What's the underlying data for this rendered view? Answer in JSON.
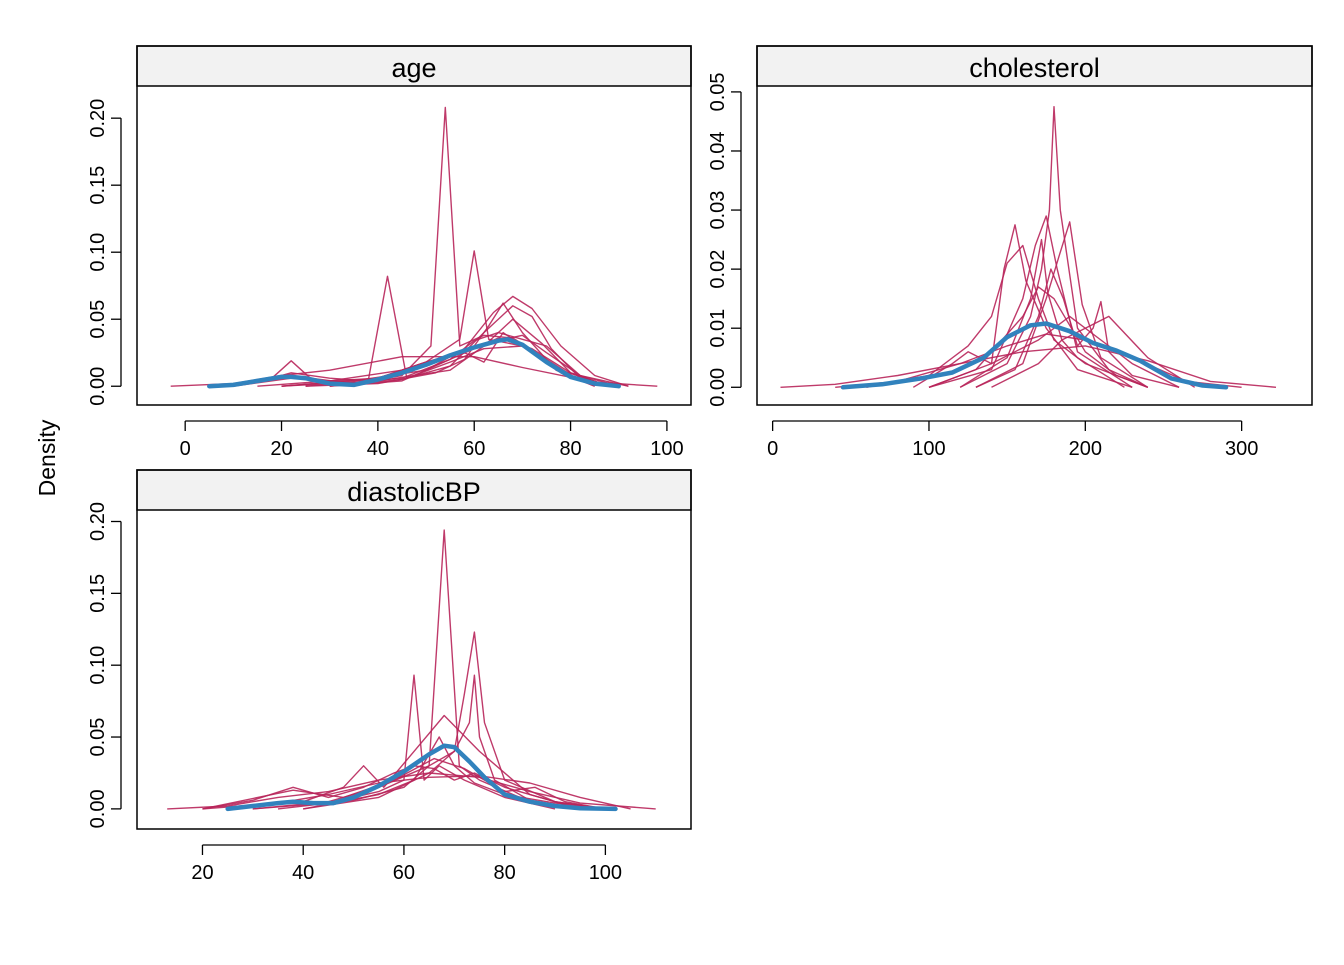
{
  "figure": {
    "ylabel": "Density",
    "colors": {
      "observed": "#3182bd",
      "imputed": "#b8255a",
      "strip_bg": "#f2f2f2",
      "frame": "#000000"
    }
  },
  "chart_data": [
    {
      "type": "line",
      "title": "age",
      "xlabel": "",
      "ylabel": "Density",
      "xlim": [
        -10,
        105
      ],
      "ylim": [
        -0.014,
        0.224
      ],
      "xticks": [
        "0",
        "20",
        "40",
        "60",
        "80",
        "100"
      ],
      "yticks": [
        "0.00",
        "0.05",
        "0.10",
        "0.15",
        "0.20"
      ],
      "grid": false,
      "observed": {
        "x": [
          5,
          10,
          15,
          20,
          22,
          25,
          30,
          35,
          40,
          45,
          50,
          55,
          60,
          65,
          67,
          70,
          75,
          80,
          85,
          90
        ],
        "y": [
          0.0,
          0.001,
          0.004,
          0.007,
          0.007,
          0.006,
          0.002,
          0.001,
          0.005,
          0.01,
          0.016,
          0.023,
          0.029,
          0.034,
          0.035,
          0.031,
          0.018,
          0.007,
          0.002,
          0.0
        ]
      },
      "imputed": [
        {
          "x": [
            -3,
            10,
            20,
            30,
            45,
            60,
            70,
            85,
            98
          ],
          "y": [
            0.0,
            0.002,
            0.008,
            0.012,
            0.022,
            0.022,
            0.014,
            0.003,
            0.0
          ]
        },
        {
          "x": [
            5,
            15,
            22,
            30,
            38,
            42,
            46,
            55,
            62,
            70,
            78,
            85
          ],
          "y": [
            0.0,
            0.003,
            0.01,
            0.006,
            0.004,
            0.082,
            0.006,
            0.018,
            0.028,
            0.03,
            0.01,
            0.0
          ]
        },
        {
          "x": [
            10,
            18,
            22,
            26,
            35,
            45,
            51,
            54,
            57,
            62,
            68,
            75,
            82,
            90
          ],
          "y": [
            0.0,
            0.006,
            0.019,
            0.006,
            0.002,
            0.008,
            0.03,
            0.208,
            0.03,
            0.038,
            0.036,
            0.02,
            0.004,
            0.0
          ]
        },
        {
          "x": [
            10,
            22,
            30,
            40,
            50,
            57,
            60,
            63,
            70,
            78,
            88
          ],
          "y": [
            0.0,
            0.006,
            0.004,
            0.006,
            0.018,
            0.035,
            0.101,
            0.035,
            0.03,
            0.012,
            0.0
          ]
        },
        {
          "x": [
            20,
            35,
            50,
            58,
            64,
            68,
            72,
            78,
            85,
            92
          ],
          "y": [
            0.0,
            0.004,
            0.012,
            0.028,
            0.055,
            0.067,
            0.058,
            0.03,
            0.008,
            0.0
          ]
        },
        {
          "x": [
            25,
            40,
            52,
            58,
            63,
            66,
            70,
            77,
            85
          ],
          "y": [
            0.0,
            0.002,
            0.01,
            0.02,
            0.045,
            0.062,
            0.04,
            0.012,
            0.0
          ]
        },
        {
          "x": [
            30,
            45,
            55,
            60,
            65,
            70,
            75,
            82,
            90
          ],
          "y": [
            0.0,
            0.004,
            0.02,
            0.034,
            0.04,
            0.035,
            0.03,
            0.008,
            0.0
          ]
        },
        {
          "x": [
            30,
            45,
            55,
            62,
            68,
            72,
            76,
            82,
            88
          ],
          "y": [
            0.0,
            0.005,
            0.015,
            0.04,
            0.06,
            0.052,
            0.028,
            0.006,
            0.0
          ]
        },
        {
          "x": [
            15,
            30,
            45,
            52,
            58,
            62,
            66,
            72,
            80,
            90
          ],
          "y": [
            0.0,
            0.004,
            0.012,
            0.02,
            0.025,
            0.018,
            0.04,
            0.025,
            0.006,
            0.0
          ]
        },
        {
          "x": [
            20,
            40,
            50,
            60,
            65,
            70,
            75,
            82,
            92
          ],
          "y": [
            0.0,
            0.006,
            0.018,
            0.028,
            0.034,
            0.038,
            0.025,
            0.008,
            0.0
          ]
        },
        {
          "x": [
            20,
            40,
            55,
            62,
            68,
            74,
            80,
            88
          ],
          "y": [
            0.0,
            0.004,
            0.012,
            0.03,
            0.05,
            0.032,
            0.01,
            0.0
          ]
        },
        {
          "x": [
            25,
            45,
            55,
            65,
            72,
            80,
            88
          ],
          "y": [
            0.0,
            0.006,
            0.02,
            0.036,
            0.028,
            0.01,
            0.0
          ]
        }
      ]
    },
    {
      "type": "line",
      "title": "cholesterol",
      "xlabel": "",
      "ylabel": "",
      "xlim": [
        -10,
        345
      ],
      "ylim": [
        -0.003,
        0.051
      ],
      "xticks": [
        "0",
        "100",
        "200",
        "300"
      ],
      "yticks": [
        "0.00",
        "0.01",
        "0.02",
        "0.03",
        "0.04",
        "0.05"
      ],
      "grid": false,
      "observed": {
        "x": [
          45,
          70,
          95,
          115,
          135,
          150,
          165,
          175,
          190,
          205,
          220,
          235,
          255,
          275,
          290
        ],
        "y": [
          0.0,
          0.0005,
          0.0015,
          0.0025,
          0.005,
          0.0085,
          0.0105,
          0.0108,
          0.0095,
          0.0075,
          0.0062,
          0.0045,
          0.0015,
          0.0003,
          0.0
        ]
      },
      "imputed": [
        {
          "x": [
            5,
            40,
            80,
            120,
            160,
            200,
            240,
            280,
            322
          ],
          "y": [
            0.0,
            0.0005,
            0.002,
            0.004,
            0.006,
            0.007,
            0.0045,
            0.001,
            0.0
          ]
        },
        {
          "x": [
            40,
            80,
            120,
            150,
            175,
            200,
            230,
            265,
            300
          ],
          "y": [
            0.0,
            0.001,
            0.004,
            0.007,
            0.009,
            0.008,
            0.005,
            0.001,
            0.0
          ]
        },
        {
          "x": [
            60,
            100,
            125,
            140,
            150,
            160,
            170,
            180,
            200,
            240
          ],
          "y": [
            0.0,
            0.002,
            0.007,
            0.012,
            0.021,
            0.024,
            0.015,
            0.008,
            0.004,
            0.0
          ]
        },
        {
          "x": [
            90,
            115,
            125,
            140,
            148,
            155,
            162,
            175,
            195,
            230
          ],
          "y": [
            0.0,
            0.004,
            0.006,
            0.004,
            0.02,
            0.0275,
            0.018,
            0.01,
            0.003,
            0.0
          ]
        },
        {
          "x": [
            100,
            140,
            160,
            168,
            175,
            182,
            195,
            230
          ],
          "y": [
            0.0,
            0.003,
            0.015,
            0.024,
            0.029,
            0.02,
            0.006,
            0.0
          ]
        },
        {
          "x": [
            120,
            150,
            165,
            172,
            177,
            180,
            184,
            195,
            215,
            240
          ],
          "y": [
            0.0,
            0.004,
            0.012,
            0.02,
            0.03,
            0.0475,
            0.03,
            0.01,
            0.003,
            0.0
          ]
        },
        {
          "x": [
            120,
            150,
            165,
            172,
            176,
            185,
            195,
            225
          ],
          "y": [
            0.0,
            0.005,
            0.015,
            0.025,
            0.016,
            0.008,
            0.005,
            0.0
          ]
        },
        {
          "x": [
            130,
            160,
            175,
            183,
            190,
            198,
            210,
            240
          ],
          "y": [
            0.0,
            0.004,
            0.015,
            0.022,
            0.028,
            0.014,
            0.005,
            0.0
          ]
        },
        {
          "x": [
            130,
            155,
            170,
            178,
            186,
            195,
            205,
            210,
            215,
            230,
            260
          ],
          "y": [
            0.0,
            0.003,
            0.012,
            0.02,
            0.015,
            0.007,
            0.01,
            0.0145,
            0.006,
            0.002,
            0.0
          ]
        },
        {
          "x": [
            100,
            130,
            160,
            170,
            180,
            200,
            220,
            240
          ],
          "y": [
            0.0,
            0.003,
            0.012,
            0.017,
            0.015,
            0.006,
            0.002,
            0.0
          ]
        },
        {
          "x": [
            100,
            140,
            170,
            190,
            210,
            230,
            260
          ],
          "y": [
            0.0,
            0.004,
            0.008,
            0.012,
            0.008,
            0.004,
            0.0
          ]
        },
        {
          "x": [
            140,
            170,
            185,
            200,
            215,
            240,
            270
          ],
          "y": [
            0.0,
            0.004,
            0.008,
            0.01,
            0.012,
            0.005,
            0.0
          ]
        }
      ]
    },
    {
      "type": "line",
      "title": "diastolicBP",
      "xlabel": "",
      "ylabel": "",
      "xlim": [
        7,
        117
      ],
      "ylim": [
        -0.014,
        0.208
      ],
      "xticks": [
        "20",
        "40",
        "60",
        "80",
        "100"
      ],
      "yticks": [
        "0.00",
        "0.05",
        "0.10",
        "0.15",
        "0.20"
      ],
      "grid": false,
      "observed": {
        "x": [
          25,
          30,
          35,
          38,
          42,
          46,
          50,
          55,
          60,
          65,
          68,
          70,
          73,
          76,
          80,
          85,
          90,
          95,
          102
        ],
        "y": [
          0.0,
          0.002,
          0.004,
          0.005,
          0.004,
          0.004,
          0.008,
          0.016,
          0.026,
          0.038,
          0.044,
          0.043,
          0.033,
          0.022,
          0.01,
          0.005,
          0.002,
          0.0005,
          0.0
        ]
      },
      "imputed": [
        {
          "x": [
            13,
            25,
            35,
            45,
            55,
            65,
            75,
            85,
            95,
            110
          ],
          "y": [
            0.0,
            0.002,
            0.008,
            0.012,
            0.02,
            0.025,
            0.022,
            0.012,
            0.004,
            0.0
          ]
        },
        {
          "x": [
            20,
            30,
            38,
            45,
            52,
            58,
            62,
            66,
            70,
            74,
            80,
            90,
            100
          ],
          "y": [
            0.0,
            0.006,
            0.015,
            0.008,
            0.015,
            0.025,
            0.03,
            0.028,
            0.02,
            0.025,
            0.015,
            0.005,
            0.0
          ]
        },
        {
          "x": [
            30,
            45,
            55,
            60,
            62,
            64,
            67,
            72,
            80,
            90
          ],
          "y": [
            0.0,
            0.004,
            0.012,
            0.02,
            0.093,
            0.02,
            0.03,
            0.02,
            0.008,
            0.0
          ]
        },
        {
          "x": [
            35,
            50,
            60,
            65,
            68,
            71,
            75,
            85,
            95
          ],
          "y": [
            0.0,
            0.006,
            0.015,
            0.03,
            0.194,
            0.03,
            0.02,
            0.005,
            0.0
          ]
        },
        {
          "x": [
            40,
            55,
            65,
            70,
            72,
            74,
            76,
            80,
            90,
            100
          ],
          "y": [
            0.0,
            0.008,
            0.025,
            0.04,
            0.08,
            0.123,
            0.06,
            0.02,
            0.005,
            0.0
          ]
        },
        {
          "x": [
            30,
            45,
            55,
            65,
            70,
            73,
            74,
            75,
            78,
            85,
            95
          ],
          "y": [
            0.0,
            0.005,
            0.015,
            0.03,
            0.04,
            0.06,
            0.093,
            0.05,
            0.02,
            0.006,
            0.0
          ]
        },
        {
          "x": [
            25,
            40,
            48,
            52,
            56,
            62,
            68,
            75,
            85,
            95
          ],
          "y": [
            0.0,
            0.005,
            0.015,
            0.03,
            0.015,
            0.04,
            0.065,
            0.04,
            0.01,
            0.0
          ]
        },
        {
          "x": [
            20,
            35,
            45,
            55,
            65,
            75,
            85,
            95,
            105
          ],
          "y": [
            0.0,
            0.004,
            0.01,
            0.018,
            0.022,
            0.023,
            0.018,
            0.008,
            0.0
          ]
        },
        {
          "x": [
            20,
            38,
            48,
            58,
            66,
            72,
            80,
            86,
            92,
            100
          ],
          "y": [
            0.0,
            0.013,
            0.008,
            0.02,
            0.035,
            0.028,
            0.012,
            0.015,
            0.005,
            0.0
          ]
        },
        {
          "x": [
            40,
            55,
            62,
            67,
            70,
            74,
            80,
            90,
            100
          ],
          "y": [
            0.0,
            0.01,
            0.02,
            0.05,
            0.03,
            0.018,
            0.01,
            0.004,
            0.0
          ]
        }
      ]
    }
  ]
}
